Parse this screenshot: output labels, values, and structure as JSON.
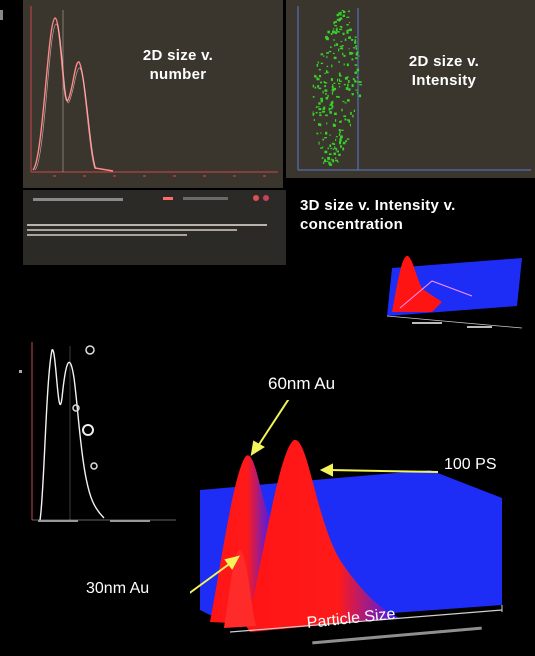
{
  "panels": {
    "number_2d": {
      "caption": "2D size v. number"
    },
    "intensity_2d": {
      "caption": "2D size v. Intensity"
    },
    "concentration_3d": {
      "caption": "3D size v. Intensity v. concentration"
    }
  },
  "main_plot": {
    "annotations": {
      "au60": "60nm Au",
      "ps100": "100 PS",
      "au30": "30nm Au"
    },
    "axis_label": "Particle Size"
  },
  "colors": {
    "background": "#000000",
    "panel_bg": "#3a352d",
    "trace_red": "#ff8a8a",
    "scatter_green": "#39d22a",
    "surface_blue": "#1e2df5",
    "surface_red": "#ff1414",
    "arrow_yellow": "#f3f35a"
  }
}
